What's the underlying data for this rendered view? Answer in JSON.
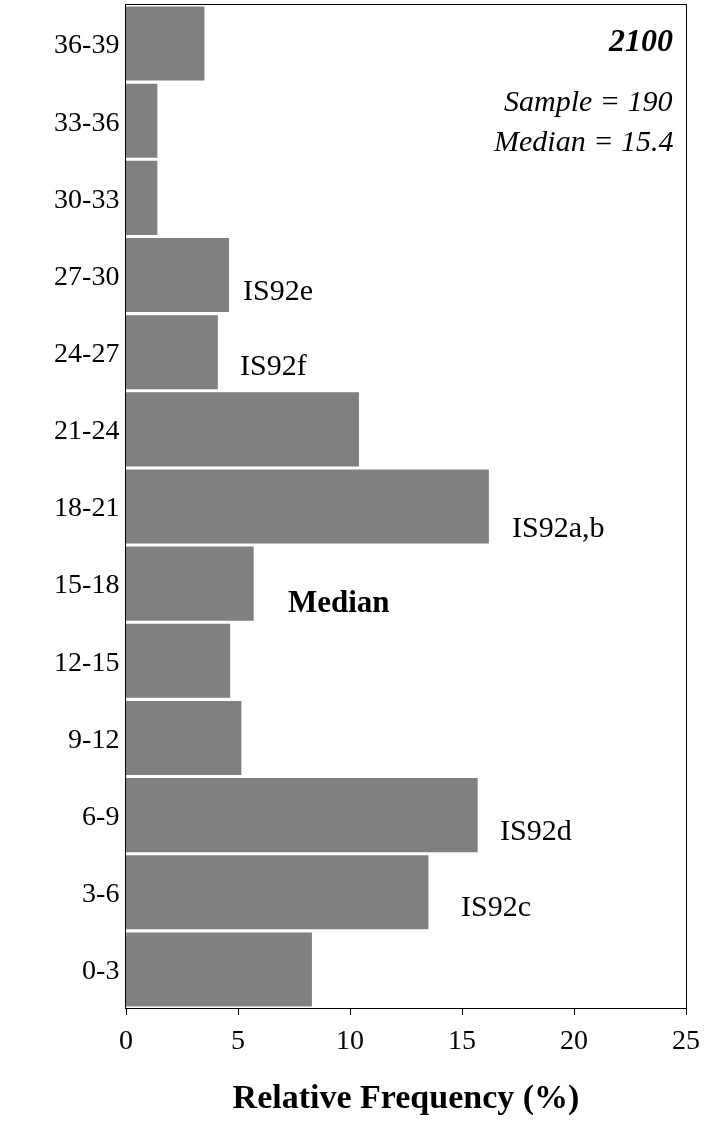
{
  "chart_data": {
    "type": "bar",
    "orientation": "horizontal",
    "title": "2100",
    "xlabel": "Relative Frequency (%)",
    "categories": [
      "36-39",
      "33-36",
      "30-33",
      "27-30",
      "24-27",
      "21-24",
      "18-21",
      "15-18",
      "12-15",
      "9-12",
      "6-9",
      "3-6",
      "0-3"
    ],
    "values": [
      3.5,
      1.4,
      1.4,
      4.6,
      4.1,
      10.4,
      16.2,
      5.7,
      4.65,
      5.15,
      15.7,
      13.5,
      8.3
    ],
    "color": "#808080",
    "xlim": [
      0,
      25
    ],
    "xticks": [
      0,
      5,
      10,
      15,
      20,
      25
    ],
    "annotations": [
      "Sample = 190",
      "Median = 15.4",
      "IS92e",
      "IS92f",
      "IS92a,b",
      "Median",
      "IS92d",
      "IS92c"
    ]
  }
}
